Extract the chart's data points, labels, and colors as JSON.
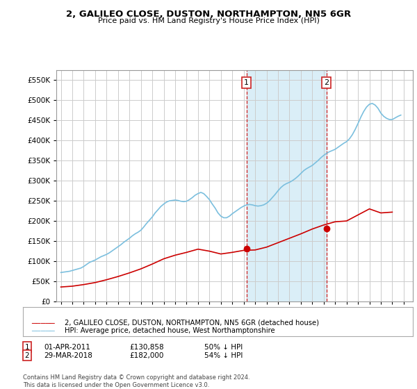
{
  "title": "2, GALILEO CLOSE, DUSTON, NORTHAMPTON, NN5 6GR",
  "subtitle": "Price paid vs. HM Land Registry's House Price Index (HPI)",
  "legend_line1": "2, GALILEO CLOSE, DUSTON, NORTHAMPTON, NN5 6GR (detached house)",
  "legend_line2": "HPI: Average price, detached house, West Northamptonshire",
  "footer": "Contains HM Land Registry data © Crown copyright and database right 2024.\nThis data is licensed under the Open Government Licence v3.0.",
  "sale1_date": 2011.25,
  "sale1_price": 130858,
  "sale1_label": "1",
  "sale1_info": "01-APR-2011",
  "sale1_price_str": "£130,858",
  "sale1_hpi_str": "50% ↓ HPI",
  "sale2_date": 2018.23,
  "sale2_price": 182000,
  "sale2_label": "2",
  "sale2_info": "29-MAR-2018",
  "sale2_price_str": "£182,000",
  "sale2_hpi_str": "54% ↓ HPI",
  "ylim": [
    0,
    575000
  ],
  "xlim_start": 1994.6,
  "xlim_end": 2025.8,
  "hpi_color": "#7bbfde",
  "price_color": "#cc0000",
  "shade_color": "#daeef7",
  "vline_color": "#cc2222",
  "grid_color": "#cccccc",
  "background_color": "#ffffff",
  "hpi_years": [
    1995.0,
    1995.25,
    1995.5,
    1995.75,
    1996.0,
    1996.25,
    1996.5,
    1996.75,
    1997.0,
    1997.25,
    1997.5,
    1997.75,
    1998.0,
    1998.25,
    1998.5,
    1998.75,
    1999.0,
    1999.25,
    1999.5,
    1999.75,
    2000.0,
    2000.25,
    2000.5,
    2000.75,
    2001.0,
    2001.25,
    2001.5,
    2001.75,
    2002.0,
    2002.25,
    2002.5,
    2002.75,
    2003.0,
    2003.25,
    2003.5,
    2003.75,
    2004.0,
    2004.25,
    2004.5,
    2004.75,
    2005.0,
    2005.25,
    2005.5,
    2005.75,
    2006.0,
    2006.25,
    2006.5,
    2006.75,
    2007.0,
    2007.25,
    2007.5,
    2007.75,
    2008.0,
    2008.25,
    2008.5,
    2008.75,
    2009.0,
    2009.25,
    2009.5,
    2009.75,
    2010.0,
    2010.25,
    2010.5,
    2010.75,
    2011.0,
    2011.25,
    2011.5,
    2011.75,
    2012.0,
    2012.25,
    2012.5,
    2012.75,
    2013.0,
    2013.25,
    2013.5,
    2013.75,
    2014.0,
    2014.25,
    2014.5,
    2014.75,
    2015.0,
    2015.25,
    2015.5,
    2015.75,
    2016.0,
    2016.25,
    2016.5,
    2016.75,
    2017.0,
    2017.25,
    2017.5,
    2017.75,
    2018.0,
    2018.25,
    2018.5,
    2018.75,
    2019.0,
    2019.25,
    2019.5,
    2019.75,
    2020.0,
    2020.25,
    2020.5,
    2020.75,
    2021.0,
    2021.25,
    2021.5,
    2021.75,
    2022.0,
    2022.25,
    2022.5,
    2022.75,
    2023.0,
    2023.25,
    2023.5,
    2023.75,
    2024.0,
    2024.25,
    2024.5,
    2024.75
  ],
  "hpi_values": [
    72000,
    73000,
    74000,
    75000,
    77000,
    79000,
    81000,
    83000,
    87000,
    92000,
    97000,
    100000,
    103000,
    107000,
    111000,
    114000,
    117000,
    121000,
    126000,
    131000,
    136000,
    141000,
    147000,
    152000,
    157000,
    163000,
    168000,
    172000,
    177000,
    185000,
    194000,
    202000,
    210000,
    220000,
    228000,
    236000,
    242000,
    247000,
    250000,
    251000,
    252000,
    251000,
    249000,
    248000,
    249000,
    253000,
    258000,
    264000,
    268000,
    271000,
    268000,
    261000,
    253000,
    242000,
    232000,
    220000,
    212000,
    208000,
    208000,
    212000,
    218000,
    223000,
    228000,
    233000,
    237000,
    240000,
    241000,
    240000,
    238000,
    237000,
    238000,
    240000,
    244000,
    250000,
    258000,
    266000,
    275000,
    283000,
    289000,
    293000,
    296000,
    300000,
    305000,
    311000,
    318000,
    325000,
    330000,
    334000,
    338000,
    344000,
    350000,
    357000,
    363000,
    368000,
    372000,
    375000,
    378000,
    383000,
    388000,
    393000,
    397000,
    404000,
    414000,
    427000,
    442000,
    458000,
    472000,
    483000,
    490000,
    492000,
    488000,
    480000,
    468000,
    460000,
    455000,
    452000,
    452000,
    456000,
    460000,
    463000
  ],
  "price_years": [
    1995.0,
    1996.0,
    1997.0,
    1998.0,
    1999.0,
    2000.0,
    2001.0,
    2002.0,
    2003.0,
    2004.0,
    2005.0,
    2006.0,
    2007.0,
    2008.0,
    2009.0,
    2010.0,
    2011.0,
    2012.0,
    2013.0,
    2014.0,
    2015.0,
    2016.0,
    2017.0,
    2018.0,
    2019.0,
    2020.0,
    2021.0,
    2022.0,
    2023.0,
    2024.0
  ],
  "price_values": [
    36000,
    38000,
    42000,
    47000,
    54000,
    62000,
    71000,
    81000,
    93000,
    106000,
    115000,
    122000,
    130000,
    125000,
    118000,
    122000,
    127000,
    128000,
    135000,
    146000,
    157000,
    168000,
    180000,
    190000,
    198000,
    200000,
    215000,
    230000,
    220000,
    222000
  ]
}
